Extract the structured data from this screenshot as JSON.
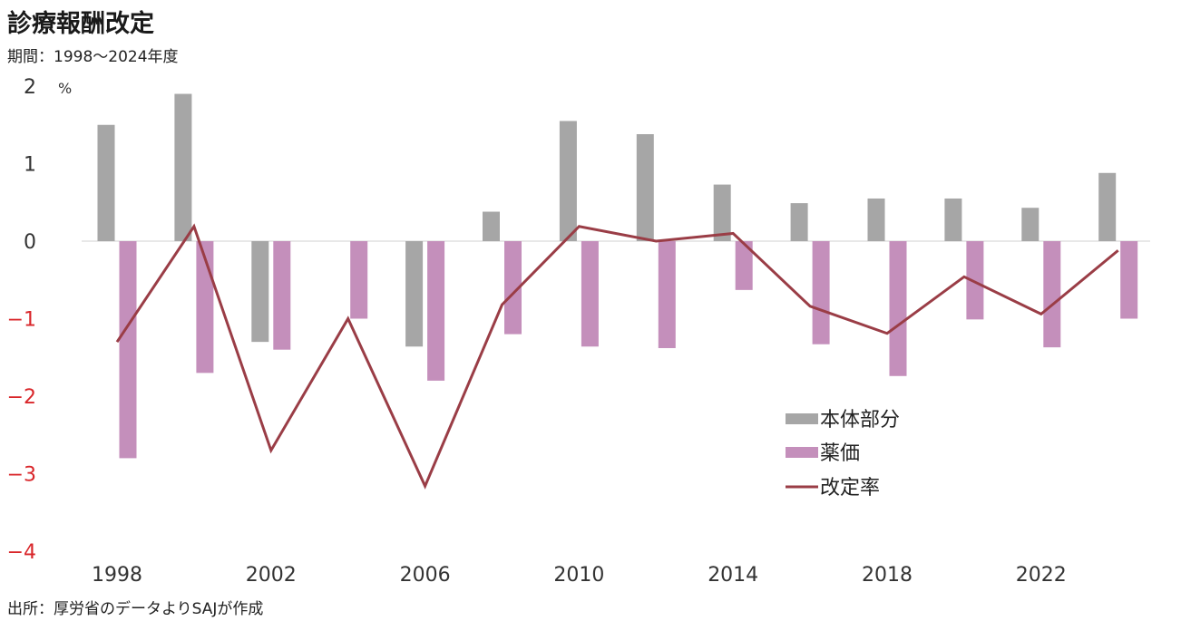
{
  "title": "診療報酬改定",
  "subtitle": "期間：1998〜2024年度",
  "source": "出所：厚労省のデータよりSAJが作成",
  "chart_data": {
    "type": "bar",
    "y_unit": "%",
    "x": [
      1998,
      2000,
      2002,
      2004,
      2006,
      2008,
      2010,
      2012,
      2014,
      2016,
      2018,
      2020,
      2022,
      2024
    ],
    "x_tick_labels": [
      "1998",
      "2002",
      "2006",
      "2010",
      "2014",
      "2018",
      "2022"
    ],
    "ylim": [
      -4,
      2
    ],
    "y_ticks": [
      2,
      1,
      0,
      -1,
      -2,
      -3,
      -4
    ],
    "negative_tick_color": "#d9262a",
    "positive_tick_color": "#333333",
    "grid": false,
    "legend_position": "right",
    "series": [
      {
        "name": "本体部分",
        "type": "bar",
        "color": "#a6a6a6",
        "values": [
          1.5,
          1.9,
          -1.3,
          0,
          -1.36,
          0.38,
          1.55,
          1.38,
          0.73,
          0.49,
          0.55,
          0.55,
          0.43,
          0.88
        ]
      },
      {
        "name": "薬価",
        "type": "bar",
        "color": "#c48fbb",
        "values": [
          -2.8,
          -1.7,
          -1.4,
          -1.0,
          -1.8,
          -1.2,
          -1.36,
          -1.38,
          -0.63,
          -1.33,
          -1.74,
          -1.01,
          -1.37,
          -1.0
        ]
      },
      {
        "name": "改定率",
        "type": "line",
        "color": "#9a3d46",
        "values": [
          -1.3,
          0.19,
          -2.7,
          -1.0,
          -3.16,
          -0.82,
          0.19,
          0.0,
          0.1,
          -0.84,
          -1.19,
          -0.46,
          -0.94,
          -0.12
        ]
      }
    ]
  }
}
